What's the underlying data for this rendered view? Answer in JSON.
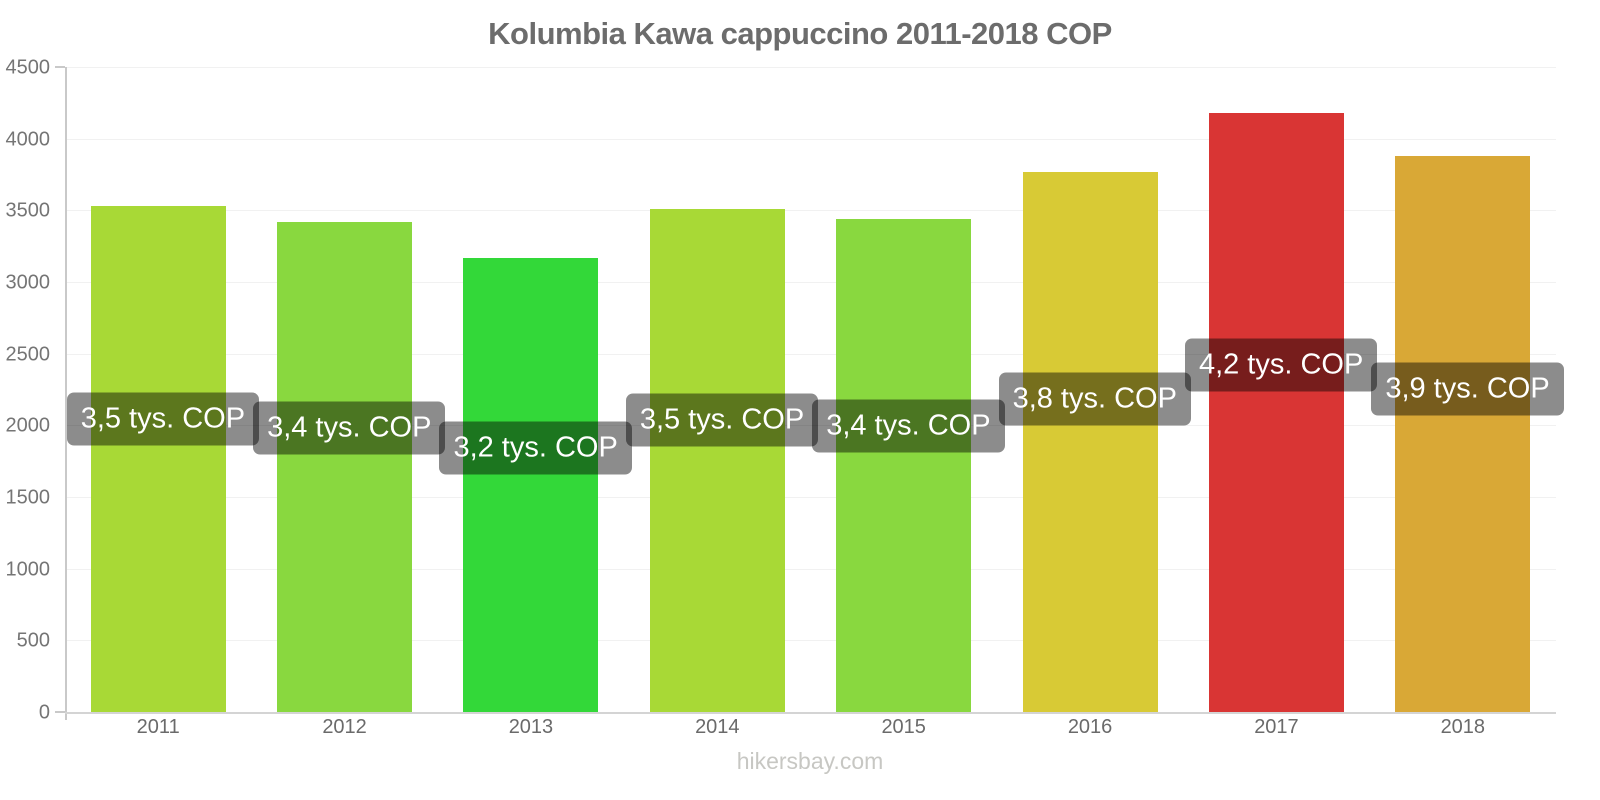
{
  "title": "Kolumbia Kawa cappuccino 2011-2018 COP",
  "footer": "hikersbay.com",
  "chart_data": {
    "type": "bar",
    "title": "Kolumbia Kawa cappuccino 2011-2018 COP",
    "categories": [
      "2011",
      "2012",
      "2013",
      "2014",
      "2015",
      "2016",
      "2017",
      "2018"
    ],
    "values": [
      3530,
      3420,
      3170,
      3510,
      3440,
      3770,
      4180,
      3880
    ],
    "bar_labels": [
      "3,5 tys. COP",
      "3,4 tys. COP",
      "3,2 tys. COP",
      "3,5 tys. COP",
      "3,4 tys. COP",
      "3,8 tys. COP",
      "4,2 tys. COP",
      "3,9 tys. COP"
    ],
    "bar_colors": [
      "#a8d936",
      "#89d83f",
      "#33d839",
      "#a8d936",
      "#89d83f",
      "#d8ca35",
      "#d93534",
      "#d9a836"
    ],
    "xlabel": "",
    "ylabel": "",
    "ylim": [
      0,
      4500
    ],
    "yticks": [
      0,
      500,
      1000,
      1500,
      2000,
      2500,
      3000,
      3500,
      4000,
      4500
    ],
    "grid": true,
    "legend": false,
    "label_badge_bg": "rgba(0,0,0,0.45)",
    "label_text_color": "#ffffff",
    "unit": "COP"
  }
}
